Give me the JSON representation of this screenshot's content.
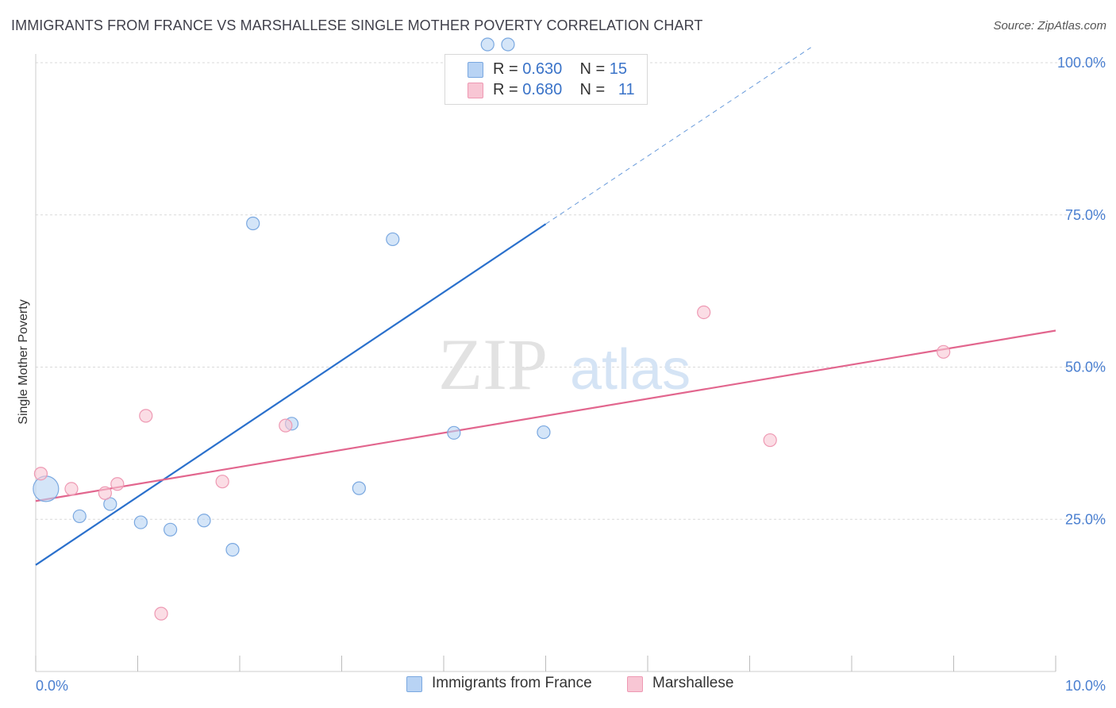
{
  "header": {
    "title": "IMMIGRANTS FROM FRANCE VS MARSHALLESE SINGLE MOTHER POVERTY CORRELATION CHART",
    "source": "Source: ZipAtlas.com"
  },
  "legend": {
    "rows": [
      {
        "r_label": "R = ",
        "r_value": "0.630",
        "n_label": "N = ",
        "n_value": "15"
      },
      {
        "r_label": "R = ",
        "r_value": "0.680",
        "n_label": "N = ",
        "n_value": "11"
      }
    ]
  },
  "watermark": {
    "part1": "ZIP",
    "part2": "atlas"
  },
  "colors": {
    "blue_fill": "#b8d3f4",
    "blue_stroke": "#7aa8e0",
    "blue_line": "#2a70cc",
    "pink_fill": "#f8c6d4",
    "pink_stroke": "#ee99b3",
    "pink_line": "#e2668e",
    "tick": "#4a7fd0",
    "grid": "#d9d9d9"
  },
  "chart_data": {
    "type": "scatter",
    "title": "IMMIGRANTS FROM FRANCE VS MARSHALLESE SINGLE MOTHER POVERTY CORRELATION CHART",
    "xlabel": "",
    "ylabel": "Single Mother Poverty",
    "xlim": [
      0,
      10
    ],
    "ylim": [
      0,
      105
    ],
    "x_tick_labels": [
      "0.0%",
      "10.0%"
    ],
    "y_ticks": [
      25,
      50,
      75,
      100
    ],
    "y_tick_labels": [
      "25.0%",
      "50.0%",
      "75.0%",
      "100.0%"
    ],
    "grid": true,
    "series": [
      {
        "name": "Immigrants from France",
        "color": "blue",
        "points": [
          {
            "x": 0.1,
            "y": 30.0,
            "big": true
          },
          {
            "x": 0.43,
            "y": 25.5
          },
          {
            "x": 0.73,
            "y": 27.5
          },
          {
            "x": 1.03,
            "y": 24.5
          },
          {
            "x": 1.32,
            "y": 23.3
          },
          {
            "x": 1.65,
            "y": 24.8
          },
          {
            "x": 1.93,
            "y": 20.0
          },
          {
            "x": 2.13,
            "y": 73.6
          },
          {
            "x": 2.51,
            "y": 40.7
          },
          {
            "x": 3.17,
            "y": 30.1
          },
          {
            "x": 3.5,
            "y": 71.0
          },
          {
            "x": 4.1,
            "y": 39.2
          },
          {
            "x": 4.43,
            "y": 103.0
          },
          {
            "x": 4.63,
            "y": 103.0
          },
          {
            "x": 4.98,
            "y": 39.3
          }
        ],
        "trend": {
          "x1": 0,
          "y1": 17.5,
          "x2": 5.0,
          "y2": 73.5,
          "dash_x2": 7.6,
          "dash_y2": 102.5
        }
      },
      {
        "name": "Marshallese",
        "color": "pink",
        "points": [
          {
            "x": 0.05,
            "y": 32.5
          },
          {
            "x": 0.35,
            "y": 30.0
          },
          {
            "x": 0.68,
            "y": 29.3
          },
          {
            "x": 0.8,
            "y": 30.8
          },
          {
            "x": 1.08,
            "y": 42.0
          },
          {
            "x": 1.23,
            "y": 9.5
          },
          {
            "x": 1.83,
            "y": 31.2
          },
          {
            "x": 2.45,
            "y": 40.4
          },
          {
            "x": 6.55,
            "y": 59.0
          },
          {
            "x": 7.2,
            "y": 38.0
          },
          {
            "x": 8.9,
            "y": 52.5
          }
        ],
        "trend": {
          "x1": 0,
          "y1": 28.0,
          "x2": 10.0,
          "y2": 56.0
        }
      }
    ]
  }
}
